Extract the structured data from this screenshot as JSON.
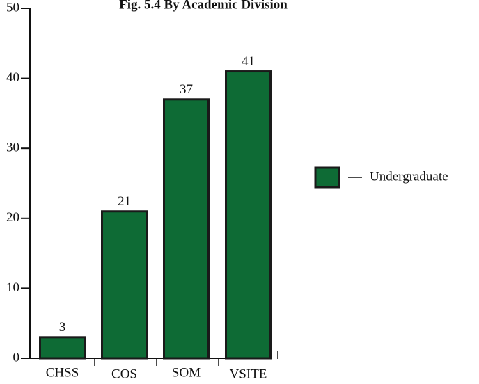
{
  "chart_data": {
    "type": "bar",
    "title": "Fig. 5.4 By Academic Division",
    "categories": [
      "CHSS",
      "COS",
      "SOM",
      "VSITE"
    ],
    "series": [
      {
        "name": "Undergraduate",
        "color": "#0e6b35",
        "values": [
          3,
          21,
          37,
          41
        ]
      }
    ],
    "ylim": [
      0,
      50
    ],
    "yticks": [
      0,
      10,
      20,
      30,
      40,
      50
    ],
    "grid": false,
    "legend": "right"
  }
}
